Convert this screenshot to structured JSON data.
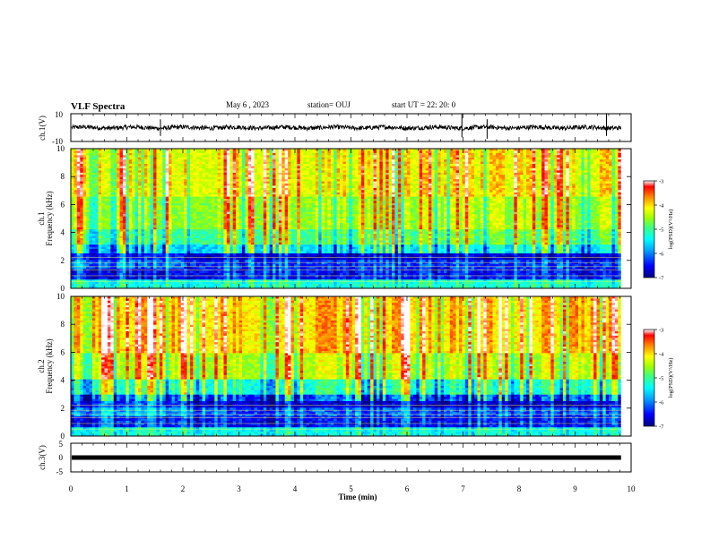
{
  "header": {
    "title": "VLF Spectra",
    "date": "May 6 , 2023",
    "station": "station= OUJ",
    "start": "start UT = 22: 20: 0"
  },
  "chart_data": [
    {
      "type": "line",
      "name": "ch1-waveform",
      "ylabel": "ch.1(V)",
      "ylim": [
        -10,
        10
      ],
      "yticks": [
        "10",
        "-10"
      ],
      "baseline": 0,
      "note_spikes_min": [
        1.6,
        6.98,
        7.43,
        9.56
      ]
    },
    {
      "type": "heatmap",
      "name": "ch1-spectrogram",
      "ylabel": "ch.1 Frequency (kHz)",
      "ylim": [
        0,
        10
      ],
      "yticks": [
        "0",
        "2",
        "4",
        "6",
        "8",
        "10"
      ],
      "colorbar": {
        "label": "log(PSD)(V²/Hz)",
        "ticks": [
          "-3",
          "-4",
          "-5",
          "-6",
          "-7"
        ],
        "range": [
          -7,
          -3
        ]
      },
      "bands": [
        {
          "from_khz": 0,
          "to_khz": 0.6,
          "level": -5.6
        },
        {
          "from_khz": 0.6,
          "to_khz": 1.4,
          "level": -6.6
        },
        {
          "from_khz": 1.4,
          "to_khz": 2.0,
          "level": -6.2
        },
        {
          "from_khz": 2.0,
          "to_khz": 2.5,
          "level": -6.5
        },
        {
          "from_khz": 2.5,
          "to_khz": 3.2,
          "level": -5.9
        },
        {
          "from_khz": 3.2,
          "to_khz": 4.2,
          "level": -5.3
        },
        {
          "from_khz": 4.2,
          "to_khz": 6.5,
          "level": -4.9
        },
        {
          "from_khz": 6.5,
          "to_khz": 10,
          "level": -4.5
        }
      ]
    },
    {
      "type": "heatmap",
      "name": "ch2-spectrogram",
      "ylabel": "ch.2 Frequency (kHz)",
      "ylim": [
        0,
        10
      ],
      "yticks": [
        "0",
        "2",
        "4",
        "6",
        "8",
        "10"
      ],
      "colorbar": {
        "label": "log(PSD)(V²/Hz)",
        "ticks": [
          "-3",
          "-4",
          "-5",
          "-6",
          "-7"
        ],
        "range": [
          -7,
          -3
        ]
      },
      "bands": [
        {
          "from_khz": 0,
          "to_khz": 0.6,
          "level": -5.7
        },
        {
          "from_khz": 0.6,
          "to_khz": 1.4,
          "level": -6.6
        },
        {
          "from_khz": 1.4,
          "to_khz": 2.0,
          "level": -6.1
        },
        {
          "from_khz": 2.0,
          "to_khz": 3.0,
          "level": -6.5
        },
        {
          "from_khz": 3.0,
          "to_khz": 4.0,
          "level": -5.6
        },
        {
          "from_khz": 4.0,
          "to_khz": 6.0,
          "level": -4.8
        },
        {
          "from_khz": 6.0,
          "to_khz": 10,
          "level": -4.3
        }
      ]
    },
    {
      "type": "line",
      "name": "ch3-trace",
      "ylabel": "ch.3(V)",
      "ylim": [
        -5,
        5
      ],
      "yticks": [
        "5",
        "0",
        "-5"
      ],
      "value": 0
    }
  ],
  "xaxis": {
    "label": "Time (min)",
    "range": [
      0,
      10
    ],
    "data_end": 9.82,
    "ticks": [
      "0",
      "1",
      "2",
      "3",
      "4",
      "5",
      "6",
      "7",
      "8",
      "9",
      "10"
    ]
  },
  "colors": {
    "axis": "#000000",
    "colormap": [
      "#000080",
      "#0000ff",
      "#00a0ff",
      "#00ffff",
      "#40ff80",
      "#a0ff00",
      "#ffff00",
      "#ff8000",
      "#ff0000",
      "#ffffff"
    ]
  }
}
